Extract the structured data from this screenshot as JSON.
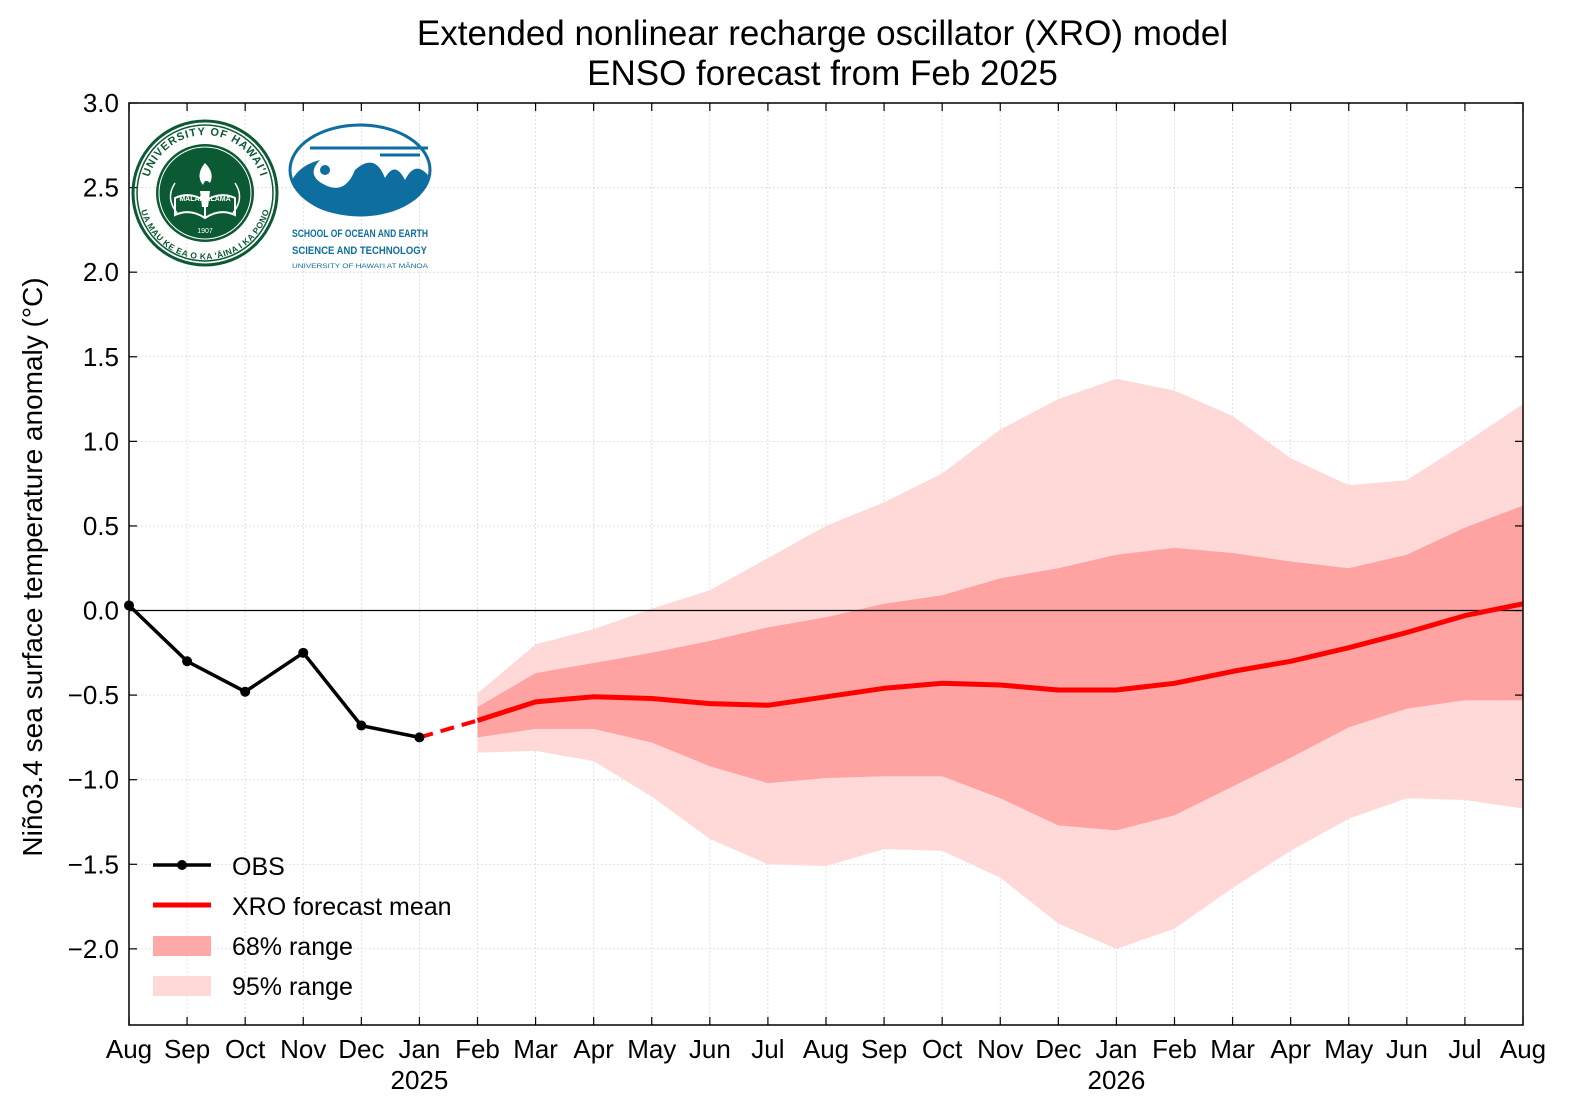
{
  "chart_data": {
    "type": "line",
    "title": [
      "Extended nonlinear recharge oscillator (XRO) model",
      "ENSO forecast from Feb 2025"
    ],
    "ylabel": "Niño3.4 sea surface temperature anomaly (°C)",
    "xlabel": "",
    "ylim": [
      -2.45,
      3.0
    ],
    "yticks": [
      -2.0,
      -1.5,
      -1.0,
      -0.5,
      0.0,
      0.5,
      1.0,
      1.5,
      2.0,
      2.5,
      3.0
    ],
    "ytick_labels": [
      "−2.0",
      "−1.5",
      "−1.0",
      "−0.5",
      "0.0",
      "0.5",
      "1.0",
      "1.5",
      "2.0",
      "2.5",
      "3.0"
    ],
    "month_labels": [
      "Aug",
      "Sep",
      "Oct",
      "Nov",
      "Dec",
      "Jan",
      "Feb",
      "Mar",
      "Apr",
      "May",
      "Jun",
      "Jul",
      "Aug",
      "Sep",
      "Oct",
      "Nov",
      "Dec",
      "Jan",
      "Feb",
      "Mar",
      "Apr",
      "May",
      "Jun",
      "Jul",
      "Aug"
    ],
    "year_labels": [
      {
        "index": 5,
        "label": "2025"
      },
      {
        "index": 17,
        "label": "2026"
      }
    ],
    "grid": true,
    "zero_line": true,
    "legend_placement": "lower-left",
    "legend": {
      "obs": "OBS",
      "mean": "XRO forecast mean",
      "range68": "68% range",
      "range95": "95% range"
    },
    "colors": {
      "obs": "#000000",
      "mean": "#ff0000",
      "range68": "#ff9999",
      "range95": "#ffd8d8"
    },
    "obs": {
      "x_index": [
        0,
        1,
        2,
        3,
        4,
        5
      ],
      "values": [
        0.03,
        -0.3,
        -0.48,
        -0.25,
        -0.68,
        -0.75
      ]
    },
    "forecast": {
      "x_index": [
        6,
        7,
        8,
        9,
        10,
        11,
        12,
        13,
        14,
        15,
        16,
        17,
        18,
        19,
        20,
        21,
        22,
        23,
        24
      ],
      "mean": [
        -0.65,
        -0.54,
        -0.51,
        -0.52,
        -0.55,
        -0.56,
        -0.51,
        -0.46,
        -0.43,
        -0.44,
        -0.47,
        -0.47,
        -0.43,
        -0.36,
        -0.3,
        -0.22,
        -0.13,
        -0.03,
        0.04
      ],
      "lower68": [
        -0.75,
        -0.7,
        -0.7,
        -0.78,
        -0.92,
        -1.02,
        -0.99,
        -0.98,
        -0.98,
        -1.11,
        -1.27,
        -1.3,
        -1.21,
        -1.04,
        -0.87,
        -0.69,
        -0.58,
        -0.53,
        -0.53
      ],
      "upper68": [
        -0.57,
        -0.37,
        -0.31,
        -0.25,
        -0.18,
        -0.1,
        -0.04,
        0.04,
        0.09,
        0.19,
        0.25,
        0.33,
        0.37,
        0.34,
        0.29,
        0.25,
        0.33,
        0.49,
        0.62
      ],
      "lower95": [
        -0.84,
        -0.83,
        -0.89,
        -1.1,
        -1.35,
        -1.5,
        -1.51,
        -1.41,
        -1.42,
        -1.58,
        -1.85,
        -2.0,
        -1.88,
        -1.64,
        -1.42,
        -1.23,
        -1.11,
        -1.12,
        -1.17
      ],
      "upper95": [
        -0.49,
        -0.2,
        -0.11,
        0.01,
        0.12,
        0.31,
        0.5,
        0.64,
        0.81,
        1.07,
        1.25,
        1.37,
        1.3,
        1.15,
        0.9,
        0.74,
        0.77,
        0.99,
        1.22
      ]
    },
    "obs_to_forecast_connector": {
      "from_index": 5,
      "to_index": 6,
      "style": "dashed",
      "color": "#ff0000"
    }
  },
  "logos": {
    "university_seal": {
      "ring_text_top": "UNIVERSITY OF HAWAI'I",
      "ring_text_bottom": "UA MAU KE EA O KA 'ĀINA I KA PONO",
      "motto": "MĀLAMALAMA",
      "year": "1907",
      "color": "#0b5a33"
    },
    "soest": {
      "line1": "SCHOOL OF OCEAN AND EARTH",
      "line2": "SCIENCE AND TECHNOLOGY",
      "line3": "UNIVERSITY OF HAWAI'I AT MĀNOA",
      "color": "#0e6ea0"
    }
  }
}
